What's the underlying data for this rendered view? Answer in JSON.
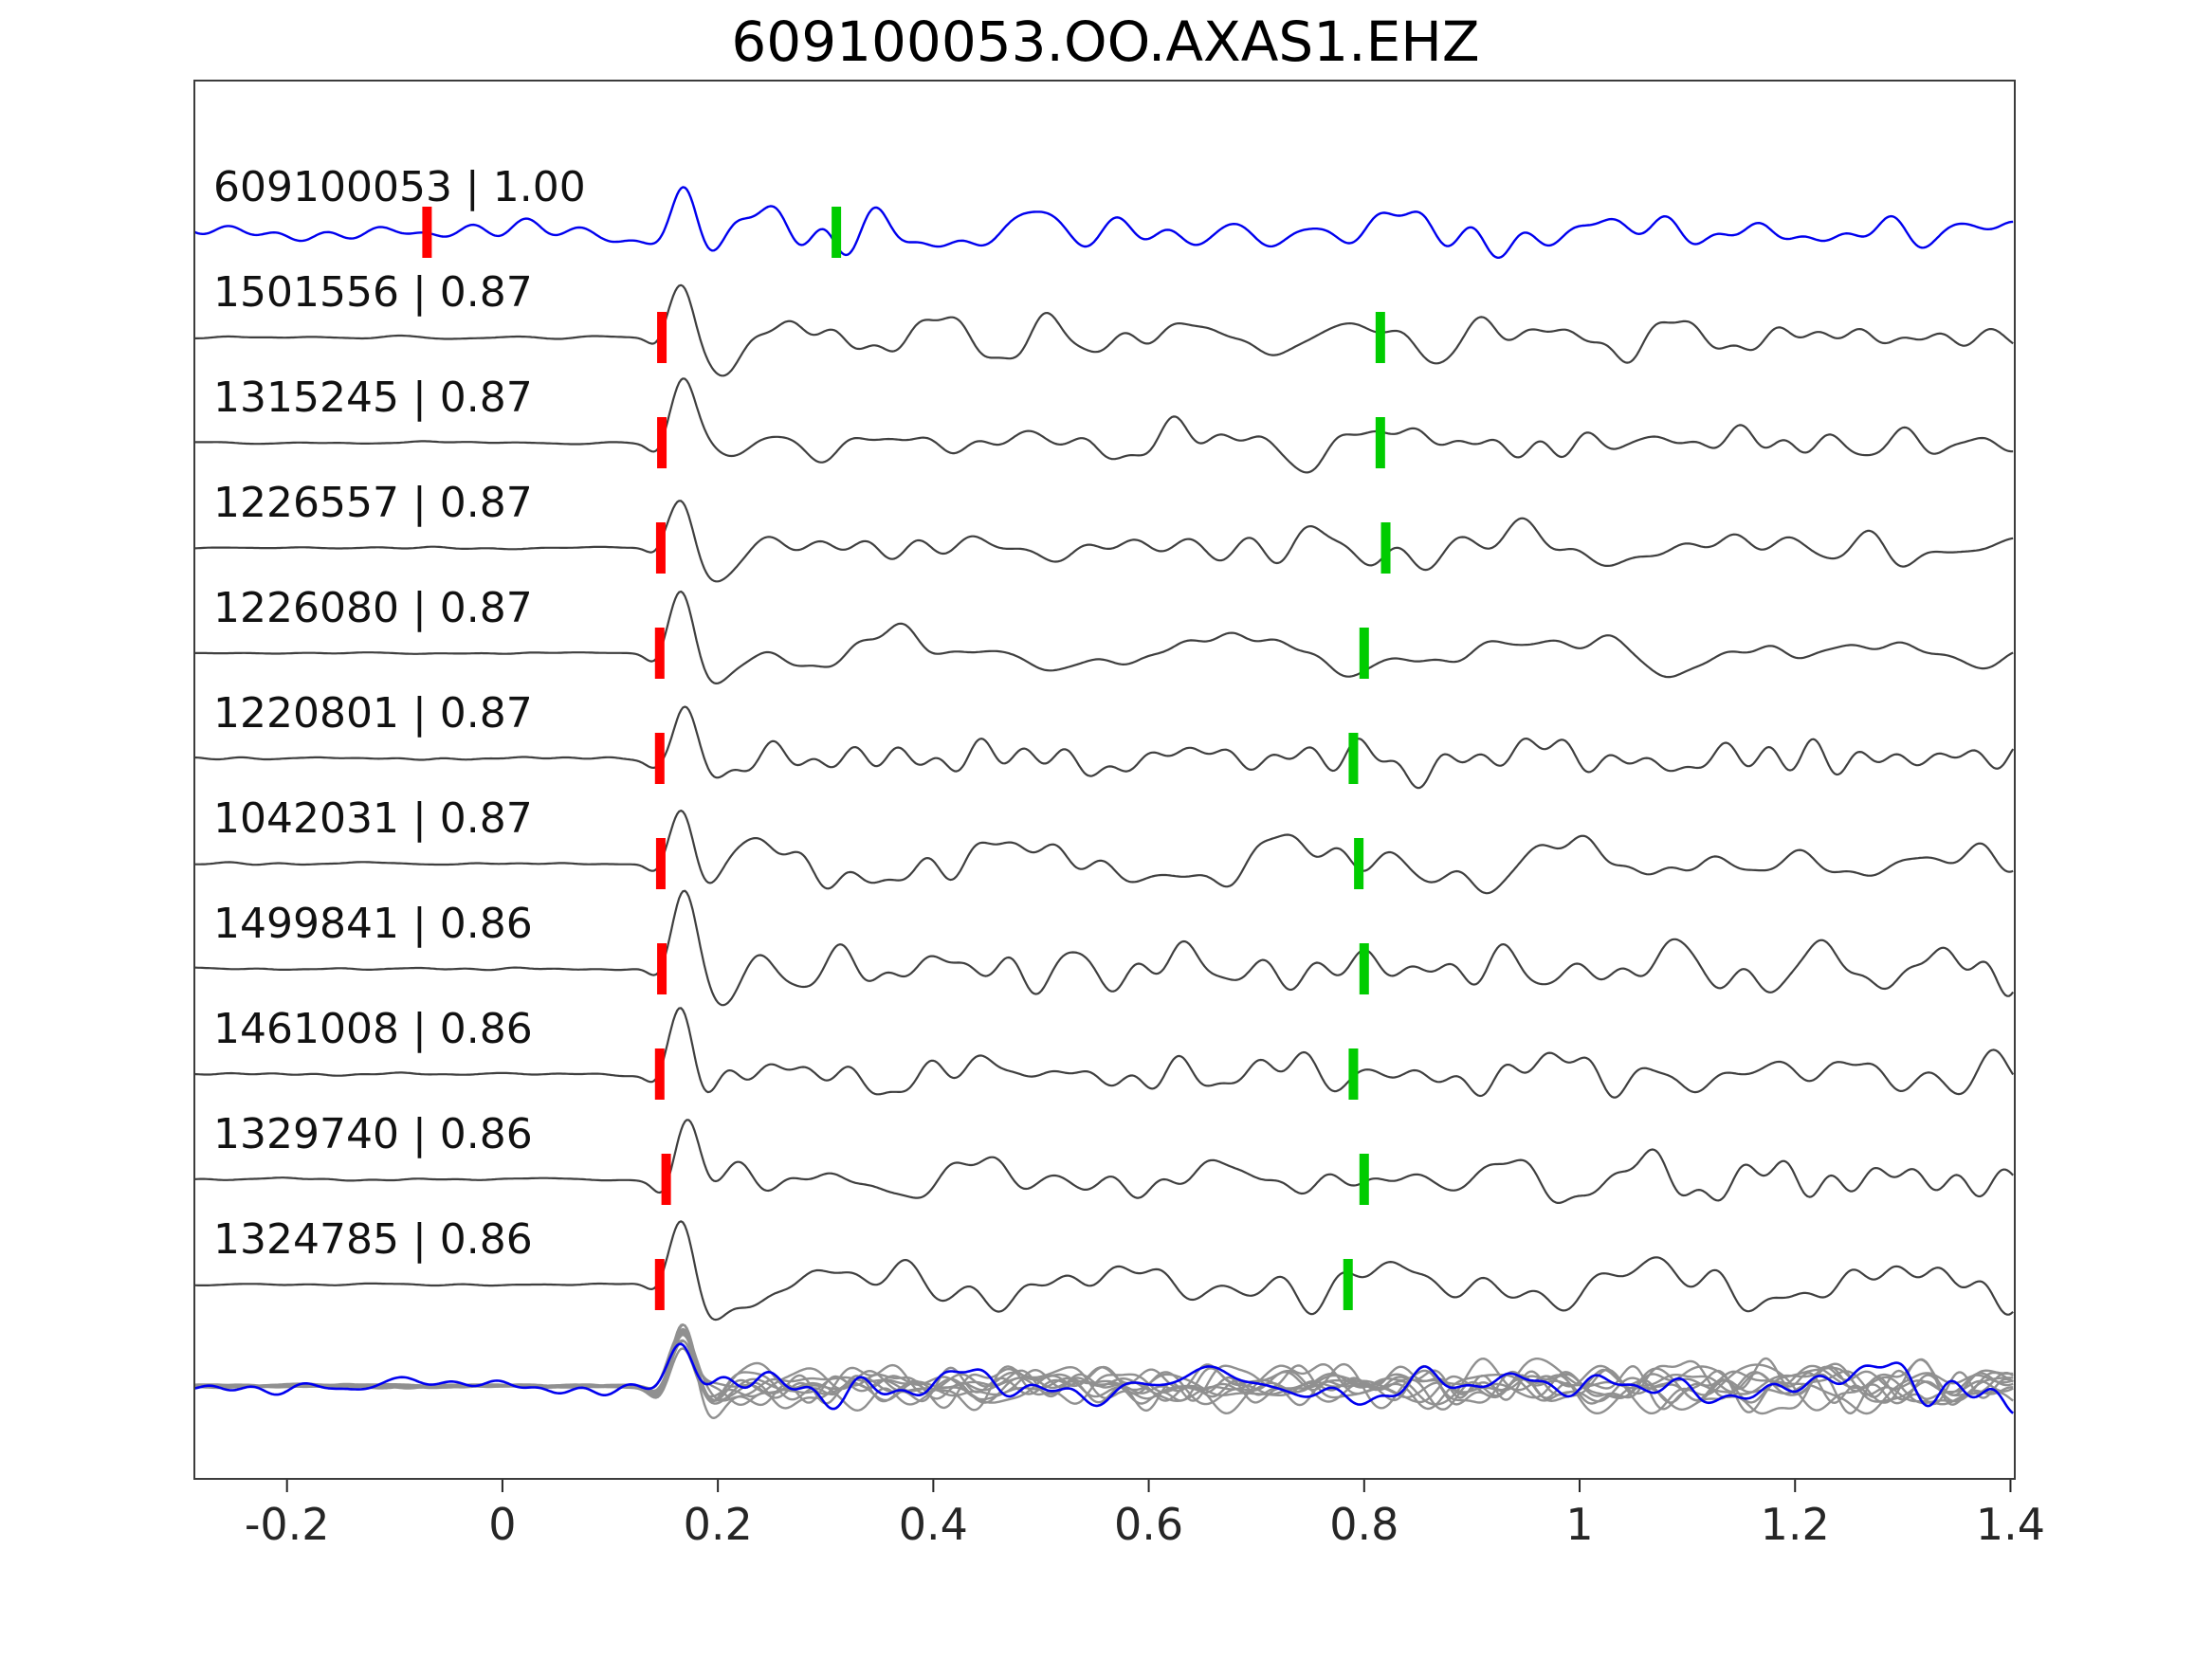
{
  "figure": {
    "title": "609100053.OO.AXAS1.EHZ"
  },
  "chart_data": {
    "type": "line",
    "title": "609100053.OO.AXAS1.EHZ",
    "xlabel": "",
    "ylabel": "",
    "grid": false,
    "legend": null,
    "xlim": [
      -0.286,
      1.404
    ],
    "xticks": [
      {
        "value": -0.2,
        "label": "-0.2"
      },
      {
        "value": 0.0,
        "label": "0"
      },
      {
        "value": 0.2,
        "label": "0.2"
      },
      {
        "value": 0.4,
        "label": "0.4"
      },
      {
        "value": 0.6,
        "label": "0.6"
      },
      {
        "value": 0.8,
        "label": "0.8"
      },
      {
        "value": 1.0,
        "label": "1"
      },
      {
        "value": 1.2,
        "label": "1.2"
      },
      {
        "value": 1.4,
        "label": "1.4"
      }
    ],
    "colors": {
      "template_trace": "#0000ee",
      "detection_trace": "#3f3f3f",
      "stack_member": "#909090",
      "pick_red": "#ff0000",
      "pick_green": "#00cc00",
      "axis": "#262626"
    },
    "traces": [
      {
        "id": "609100053",
        "correlation": 1.0,
        "label": "609100053 | 1.00",
        "role": "template",
        "red_pick": -0.07,
        "green_pick": 0.31
      },
      {
        "id": "1501556",
        "correlation": 0.87,
        "label": "1501556 | 0.87",
        "role": "detection",
        "red_pick": 0.148,
        "green_pick": 0.815
      },
      {
        "id": "1315245",
        "correlation": 0.87,
        "label": "1315245 | 0.87",
        "role": "detection",
        "red_pick": 0.148,
        "green_pick": 0.815
      },
      {
        "id": "1226557",
        "correlation": 0.87,
        "label": "1226557 | 0.87",
        "role": "detection",
        "red_pick": 0.147,
        "green_pick": 0.82
      },
      {
        "id": "1226080",
        "correlation": 0.87,
        "label": "1226080 | 0.87",
        "role": "detection",
        "red_pick": 0.146,
        "green_pick": 0.8
      },
      {
        "id": "1220801",
        "correlation": 0.87,
        "label": "1220801 | 0.87",
        "role": "detection",
        "red_pick": 0.146,
        "green_pick": 0.79
      },
      {
        "id": "1042031",
        "correlation": 0.87,
        "label": "1042031 | 0.87",
        "role": "detection",
        "red_pick": 0.147,
        "green_pick": 0.795
      },
      {
        "id": "1499841",
        "correlation": 0.86,
        "label": "1499841 | 0.86",
        "role": "detection",
        "red_pick": 0.148,
        "green_pick": 0.8
      },
      {
        "id": "1461008",
        "correlation": 0.86,
        "label": "1461008 | 0.86",
        "role": "detection",
        "red_pick": 0.146,
        "green_pick": 0.79
      },
      {
        "id": "1329740",
        "correlation": 0.86,
        "label": "1329740 | 0.86",
        "role": "detection",
        "red_pick": 0.152,
        "green_pick": 0.8
      },
      {
        "id": "1324785",
        "correlation": 0.86,
        "label": "1324785 | 0.86",
        "role": "detection",
        "red_pick": 0.146,
        "green_pick": 0.785
      }
    ],
    "stack": {
      "role": "overlay-of-aligned-detections-with-template",
      "n_members": 10,
      "align_pick": 0.148
    }
  }
}
